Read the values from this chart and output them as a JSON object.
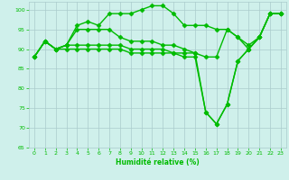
{
  "title": "",
  "xlabel": "Humidité relative (%)",
  "ylabel": "",
  "background_color": "#cff0eb",
  "grid_color": "#aacccc",
  "line_color": "#00bb00",
  "xlim": [
    -0.5,
    23.5
  ],
  "ylim": [
    65,
    102
  ],
  "yticks": [
    65,
    70,
    75,
    80,
    85,
    90,
    95,
    100
  ],
  "xticks": [
    0,
    1,
    2,
    3,
    4,
    5,
    6,
    7,
    8,
    9,
    10,
    11,
    12,
    13,
    14,
    15,
    16,
    17,
    18,
    19,
    20,
    21,
    22,
    23
  ],
  "series": [
    [
      88,
      92,
      90,
      91,
      96,
      97,
      96,
      99,
      99,
      99,
      100,
      101,
      101,
      99,
      96,
      96,
      96,
      95,
      95,
      93,
      91,
      93,
      99,
      99
    ],
    [
      88,
      92,
      90,
      91,
      95,
      95,
      95,
      95,
      93,
      92,
      92,
      92,
      91,
      91,
      90,
      89,
      88,
      88,
      95,
      93,
      90,
      93,
      99,
      99
    ],
    [
      88,
      92,
      90,
      91,
      91,
      91,
      91,
      91,
      91,
      90,
      90,
      90,
      90,
      89,
      89,
      89,
      74,
      71,
      76,
      87,
      90,
      93,
      99,
      99
    ],
    [
      88,
      92,
      90,
      90,
      90,
      90,
      90,
      90,
      90,
      89,
      89,
      89,
      89,
      89,
      88,
      88,
      74,
      71,
      76,
      87,
      90,
      93,
      99,
      99
    ]
  ],
  "marker_indices": [
    0,
    2,
    4,
    5,
    6,
    7,
    10,
    11,
    12,
    13,
    14,
    16,
    17,
    18,
    19,
    20,
    21,
    22,
    23
  ],
  "markersize": 2.5,
  "linewidth": 1.0
}
